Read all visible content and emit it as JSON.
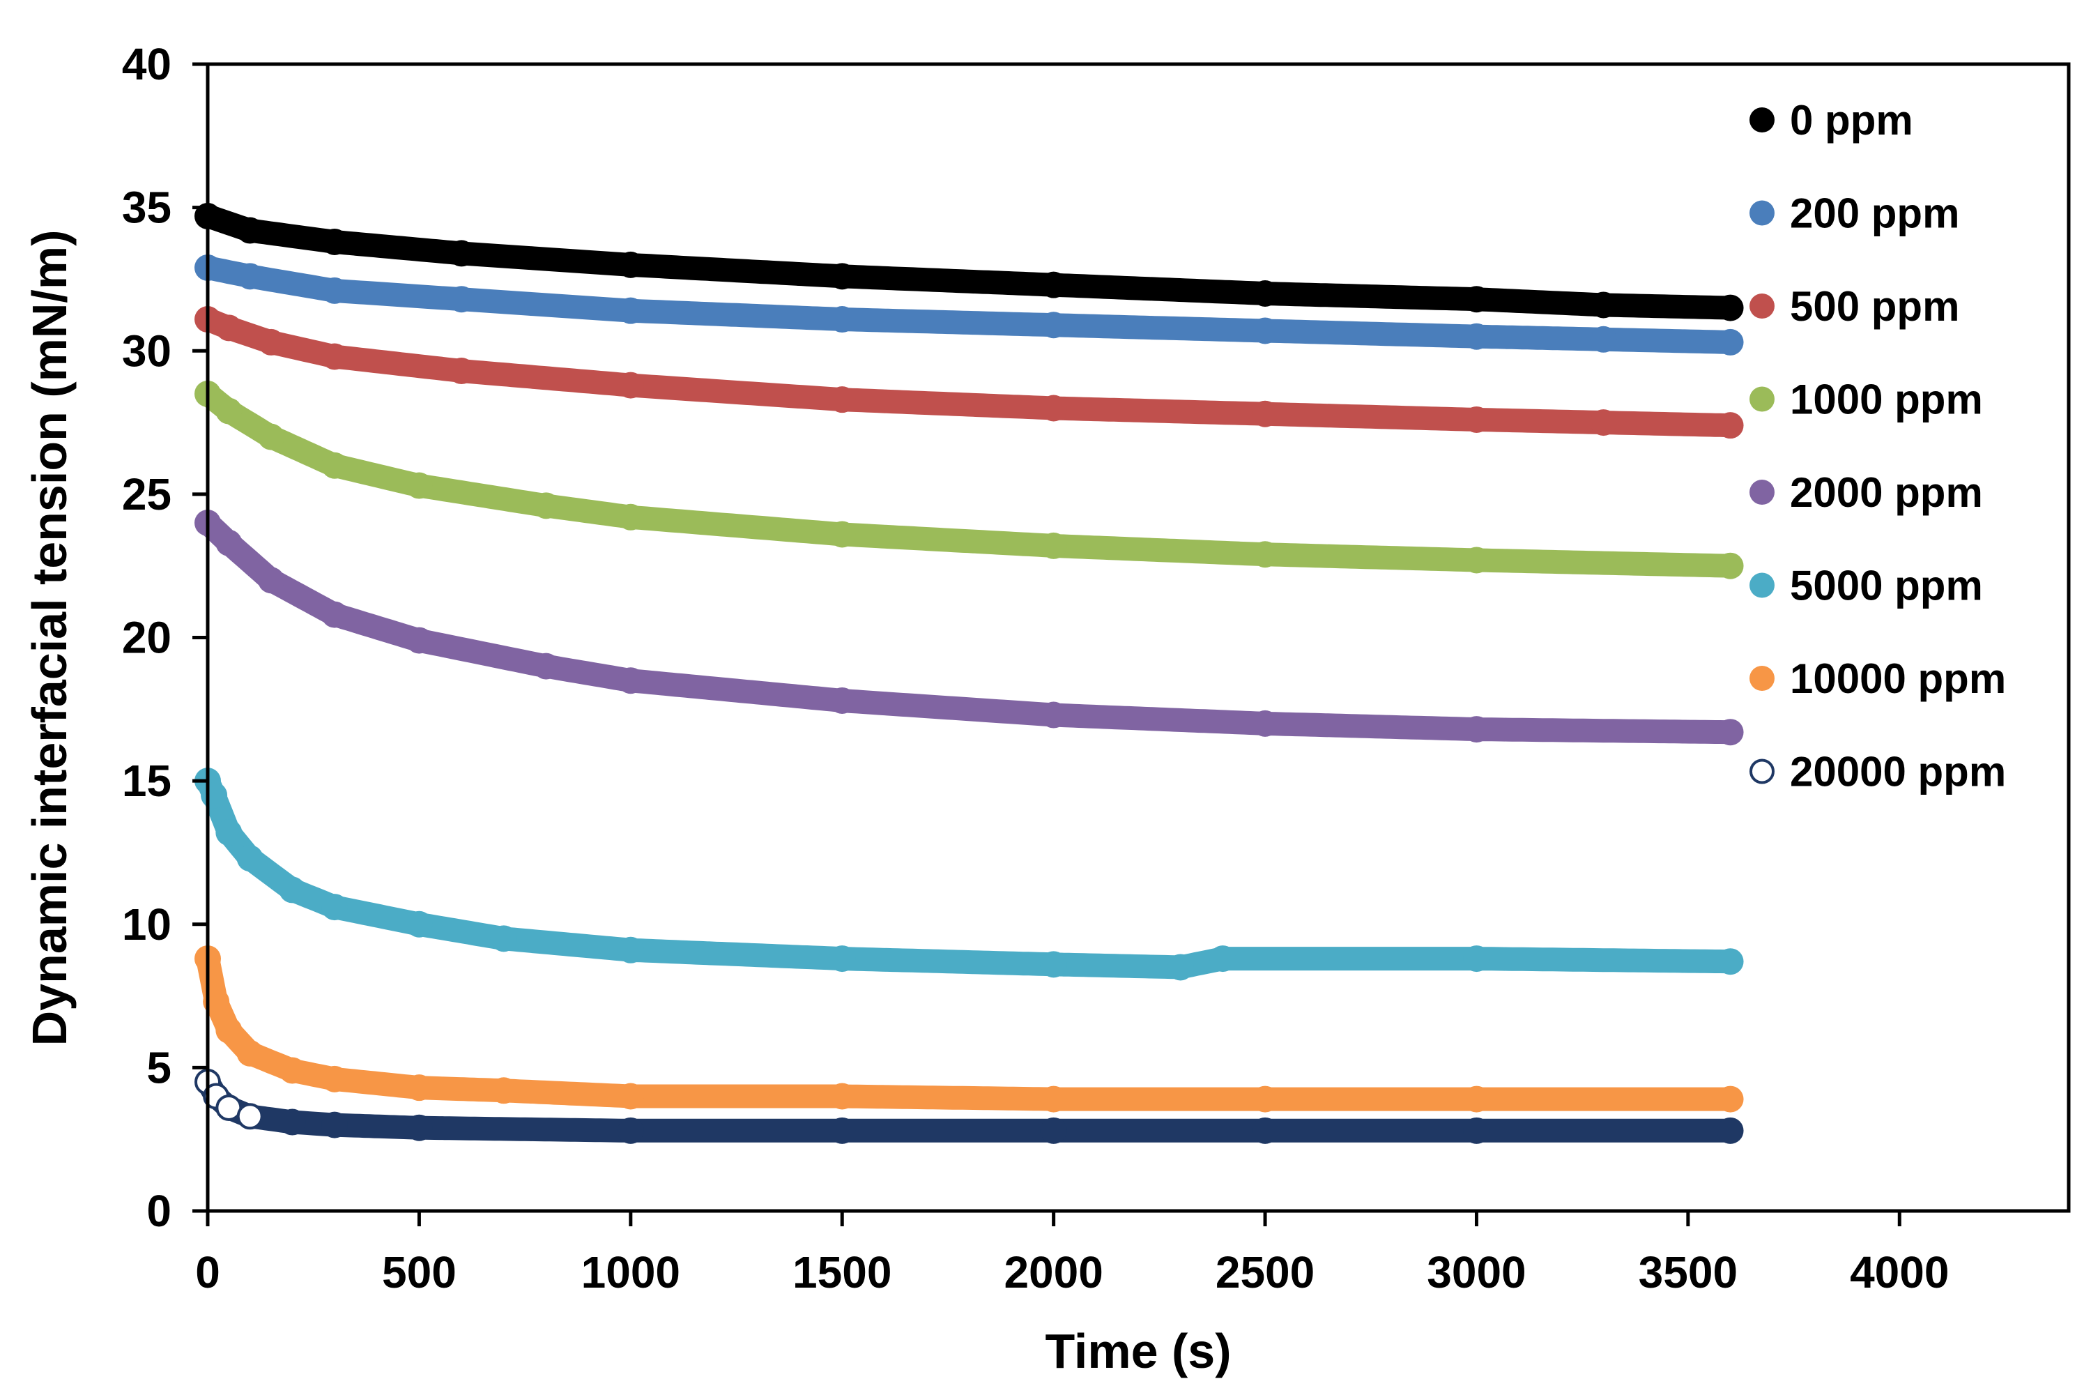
{
  "chart_data": {
    "type": "scatter",
    "title": "",
    "xlabel": "Time (s)",
    "ylabel": "Dynamic interfacial tension (mN/m)",
    "xlim": [
      0,
      4400
    ],
    "ylim": [
      0,
      40
    ],
    "xticks": [
      0,
      500,
      1000,
      1500,
      2000,
      2500,
      3000,
      3500,
      4000
    ],
    "yticks": [
      0,
      5,
      10,
      15,
      20,
      25,
      30,
      35,
      40
    ],
    "grid": false,
    "legend_position": "top-right",
    "series": [
      {
        "name": "0 ppm",
        "color": "#000000",
        "marker": "filled",
        "x": [
          0,
          100,
          300,
          600,
          1000,
          1500,
          2000,
          2500,
          3000,
          3300,
          3600
        ],
        "y": [
          34.7,
          34.2,
          33.8,
          33.4,
          33.0,
          32.6,
          32.3,
          32.0,
          31.8,
          31.6,
          31.5
        ]
      },
      {
        "name": "200 ppm",
        "color": "#4a7ebb",
        "marker": "filled",
        "x": [
          0,
          100,
          300,
          600,
          1000,
          1500,
          2000,
          2500,
          3000,
          3300,
          3600
        ],
        "y": [
          32.9,
          32.6,
          32.1,
          31.8,
          31.4,
          31.1,
          30.9,
          30.7,
          30.5,
          30.4,
          30.3
        ]
      },
      {
        "name": "500 ppm",
        "color": "#c0504d",
        "marker": "filled",
        "x": [
          0,
          50,
          150,
          300,
          600,
          1000,
          1500,
          2000,
          2500,
          3000,
          3300,
          3600
        ],
        "y": [
          31.1,
          30.8,
          30.3,
          29.8,
          29.3,
          28.8,
          28.3,
          28.0,
          27.8,
          27.6,
          27.5,
          27.4
        ]
      },
      {
        "name": "1000 ppm",
        "color": "#9bbb59",
        "marker": "filled",
        "x": [
          0,
          50,
          150,
          300,
          500,
          800,
          1000,
          1500,
          2000,
          2500,
          3000,
          3600
        ],
        "y": [
          28.5,
          27.9,
          27.0,
          26.0,
          25.3,
          24.6,
          24.2,
          23.6,
          23.2,
          22.9,
          22.7,
          22.5
        ]
      },
      {
        "name": "2000 ppm",
        "color": "#8064a2",
        "marker": "filled",
        "x": [
          0,
          50,
          150,
          300,
          500,
          800,
          1000,
          1500,
          2000,
          2500,
          3000,
          3600
        ],
        "y": [
          24.0,
          23.3,
          22.0,
          20.8,
          19.9,
          19.0,
          18.5,
          17.8,
          17.3,
          17.0,
          16.8,
          16.7
        ]
      },
      {
        "name": "5000 ppm",
        "color": "#4bacc6",
        "marker": "filled",
        "x": [
          0,
          15,
          50,
          100,
          200,
          300,
          500,
          700,
          1000,
          1500,
          2000,
          2300,
          2400,
          3000,
          3600
        ],
        "y": [
          15.0,
          14.5,
          13.2,
          12.3,
          11.2,
          10.6,
          10.0,
          9.5,
          9.1,
          8.8,
          8.6,
          8.5,
          8.8,
          8.8,
          8.7
        ]
      },
      {
        "name": "10000 ppm",
        "color": "#f79646",
        "marker": "filled",
        "x": [
          0,
          20,
          50,
          100,
          200,
          300,
          500,
          700,
          1000,
          1500,
          2000,
          2500,
          3000,
          3600
        ],
        "y": [
          8.8,
          7.3,
          6.3,
          5.5,
          4.9,
          4.6,
          4.3,
          4.2,
          4.0,
          4.0,
          3.9,
          3.9,
          3.9,
          3.9
        ]
      },
      {
        "name": "20000 ppm",
        "color": "#1f3864",
        "marker": "open",
        "x": [
          0,
          20,
          50,
          100,
          200,
          300,
          500,
          1000,
          1500,
          2000,
          2500,
          3000,
          3600
        ],
        "y": [
          4.5,
          4.0,
          3.6,
          3.3,
          3.1,
          3.0,
          2.9,
          2.8,
          2.8,
          2.8,
          2.8,
          2.8,
          2.8
        ]
      }
    ]
  }
}
